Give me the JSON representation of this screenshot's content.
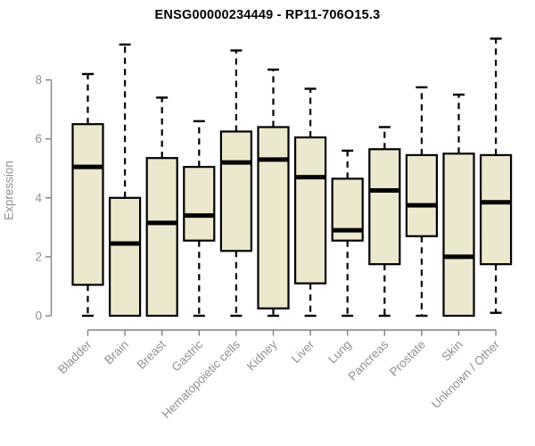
{
  "chart_data": {
    "type": "boxplot",
    "title": "ENSG00000234449 - RP11-706O15.3",
    "ylabel": "Expression",
    "ylim": [
      0,
      8
    ],
    "yticks": [
      0,
      2,
      4,
      6,
      8
    ],
    "grid": false,
    "legend": "none",
    "box_fill_color": "#ece8cd",
    "box_line_color": "#000000",
    "axis_color": "#808080",
    "tick_label_color": "#919191",
    "categories": [
      "Bladder",
      "Brain",
      "Breast",
      "Gastric",
      "Hematopoietic cells",
      "Kidney",
      "Liver",
      "Lung",
      "Pancreas",
      "Prostate",
      "Skin",
      "Unknown / Other"
    ],
    "series": [
      {
        "name": "Bladder",
        "whisker_low": 0,
        "q1": 1.05,
        "median": 5.05,
        "q3": 6.5,
        "whisker_high": 8.2
      },
      {
        "name": "Brain",
        "whisker_low": 0,
        "q1": 0,
        "median": 2.45,
        "q3": 4.0,
        "whisker_high": 9.2
      },
      {
        "name": "Breast",
        "whisker_low": 0,
        "q1": 0,
        "median": 3.15,
        "q3": 5.35,
        "whisker_high": 7.4
      },
      {
        "name": "Gastric",
        "whisker_low": 0,
        "q1": 2.55,
        "median": 3.4,
        "q3": 5.05,
        "whisker_high": 6.6
      },
      {
        "name": "Hematopoietic cells",
        "whisker_low": 0,
        "q1": 2.2,
        "median": 5.2,
        "q3": 6.25,
        "whisker_high": 9.0
      },
      {
        "name": "Kidney",
        "whisker_low": 0,
        "q1": 0.25,
        "median": 5.3,
        "q3": 6.4,
        "whisker_high": 8.35
      },
      {
        "name": "Liver",
        "whisker_low": 0,
        "q1": 1.1,
        "median": 4.7,
        "q3": 6.05,
        "whisker_high": 7.7
      },
      {
        "name": "Lung",
        "whisker_low": 0,
        "q1": 2.55,
        "median": 2.9,
        "q3": 4.65,
        "whisker_high": 5.6
      },
      {
        "name": "Pancreas",
        "whisker_low": 0,
        "q1": 1.75,
        "median": 4.25,
        "q3": 5.65,
        "whisker_high": 6.4
      },
      {
        "name": "Prostate",
        "whisker_low": 0,
        "q1": 2.7,
        "median": 3.75,
        "q3": 5.45,
        "whisker_high": 7.75
      },
      {
        "name": "Skin",
        "whisker_low": 0,
        "q1": 0,
        "median": 2.0,
        "q3": 5.5,
        "whisker_high": 7.5
      },
      {
        "name": "Unknown / Other",
        "whisker_low": 0.1,
        "q1": 1.75,
        "median": 3.85,
        "q3": 5.45,
        "whisker_high": 9.4
      }
    ]
  }
}
